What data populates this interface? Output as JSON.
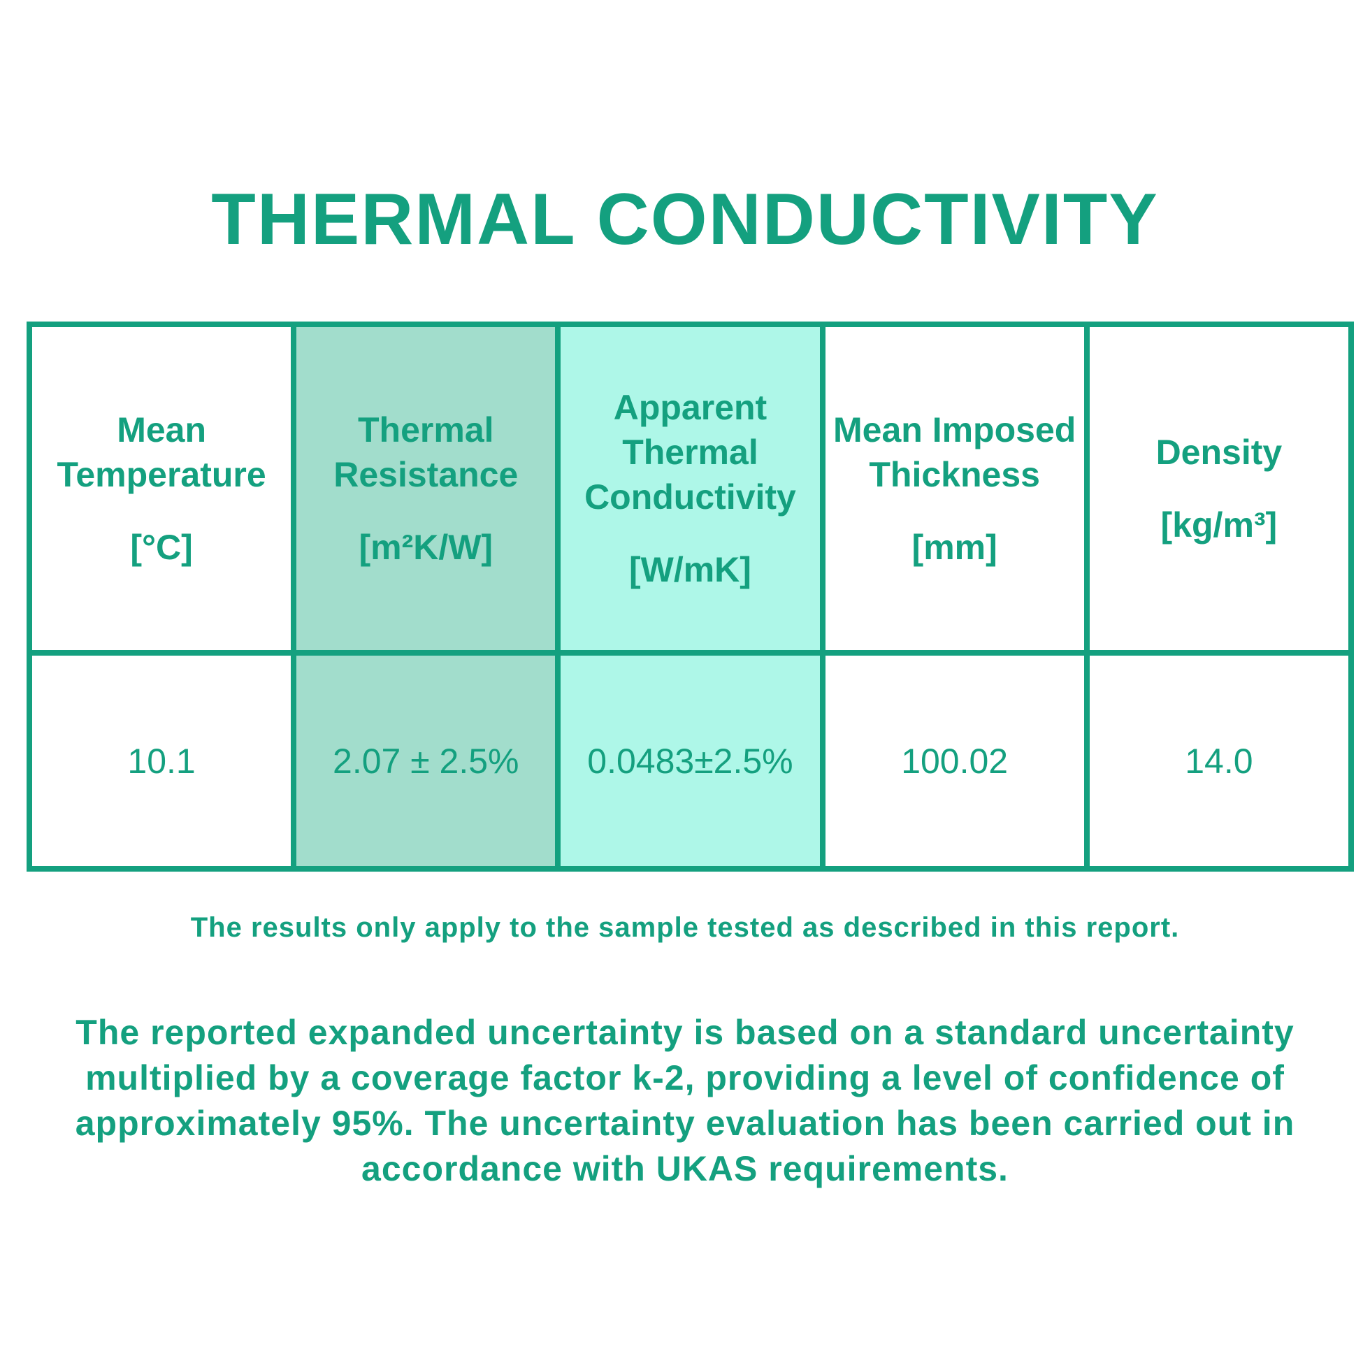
{
  "title": "THERMAL CONDUCTIVITY",
  "table": {
    "headers": [
      {
        "name": "Mean Temperature",
        "unit": "[°C]"
      },
      {
        "name": "Thermal Resistance",
        "unit": "[m²K/W]"
      },
      {
        "name": "Apparent Thermal Conductivity",
        "unit": "[W/mK]"
      },
      {
        "name": "Mean Imposed Thickness",
        "unit": "[mm]"
      },
      {
        "name": "Density",
        "unit": "[kg/m³]"
      }
    ],
    "rows": [
      [
        "10.1",
        "2.07 ± 2.5%",
        "0.0483±2.5%",
        "100.02",
        "14.0"
      ]
    ]
  },
  "notes": [
    "The results only apply to the sample tested as described in this report.",
    "The reported expanded uncertainty is based on a standard uncertainty multiplied by a coverage factor k-2, providing a level of confidence of approximately 95%. The uncertainty evaluation has been carried out in accordance with UKAS requirements."
  ]
}
